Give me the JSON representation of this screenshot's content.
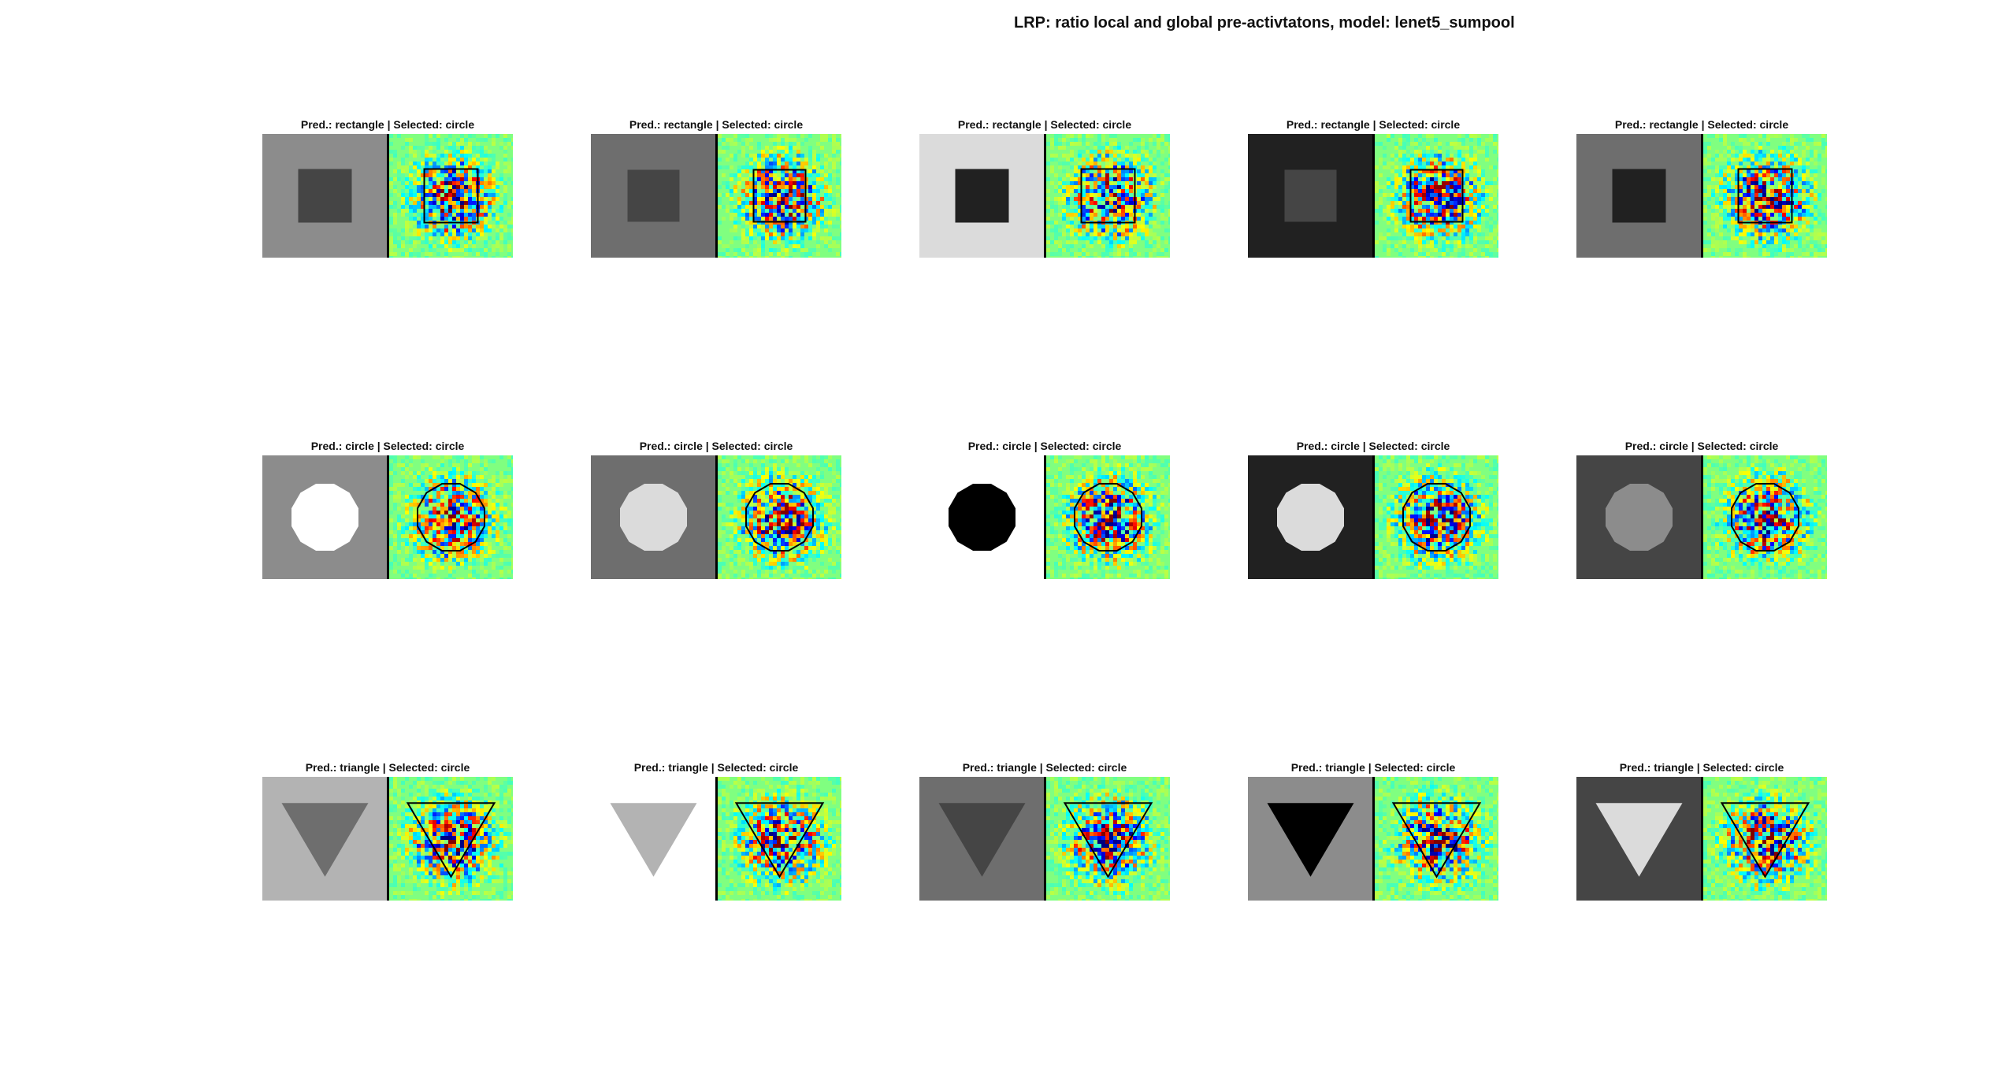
{
  "figure": {
    "title": "LRP: ratio local and global pre-activtatons, model: lenet5_sumpool"
  },
  "colors": {
    "heatmap_background": "#80ff80",
    "contour": "#000000",
    "divider": "#000000"
  },
  "panels": [
    {
      "title": "Pred.: rectangle | Selected: circle",
      "shape": "rectangle",
      "background_gray": 0.55,
      "shape_gray": 0.27
    },
    {
      "title": "Pred.: rectangle | Selected: circle",
      "shape": "rectangle",
      "background_gray": 0.43,
      "shape_gray": 0.27
    },
    {
      "title": "Pred.: rectangle | Selected: circle",
      "shape": "rectangle",
      "background_gray": 0.86,
      "shape_gray": 0.13
    },
    {
      "title": "Pred.: rectangle | Selected: circle",
      "shape": "rectangle",
      "background_gray": 0.13,
      "shape_gray": 0.27
    },
    {
      "title": "Pred.: rectangle | Selected: circle",
      "shape": "rectangle",
      "background_gray": 0.43,
      "shape_gray": 0.13
    },
    {
      "title": "Pred.: circle | Selected: circle",
      "shape": "circle",
      "background_gray": 0.55,
      "shape_gray": 1.0
    },
    {
      "title": "Pred.: circle | Selected: circle",
      "shape": "circle",
      "background_gray": 0.43,
      "shape_gray": 0.86
    },
    {
      "title": "Pred.: circle | Selected: circle",
      "shape": "circle",
      "background_gray": 1.0,
      "shape_gray": 0.0
    },
    {
      "title": "Pred.: circle | Selected: circle",
      "shape": "circle",
      "background_gray": 0.13,
      "shape_gray": 0.86
    },
    {
      "title": "Pred.: circle | Selected: circle",
      "shape": "circle",
      "background_gray": 0.27,
      "shape_gray": 0.55
    },
    {
      "title": "Pred.: triangle | Selected: circle",
      "shape": "triangle",
      "background_gray": 0.7,
      "shape_gray": 0.43
    },
    {
      "title": "Pred.: triangle | Selected: circle",
      "shape": "triangle",
      "background_gray": 1.0,
      "shape_gray": 0.7
    },
    {
      "title": "Pred.: triangle | Selected: circle",
      "shape": "triangle",
      "background_gray": 0.43,
      "shape_gray": 0.27
    },
    {
      "title": "Pred.: triangle | Selected: circle",
      "shape": "triangle",
      "background_gray": 0.55,
      "shape_gray": 0.0
    },
    {
      "title": "Pred.: triangle | Selected: circle",
      "shape": "triangle",
      "background_gray": 0.27,
      "shape_gray": 0.86
    }
  ]
}
